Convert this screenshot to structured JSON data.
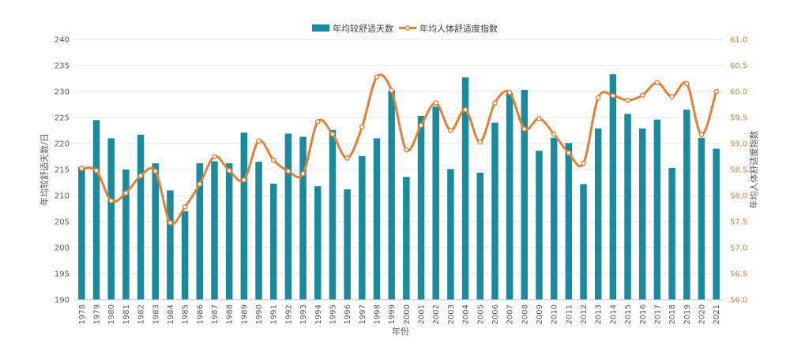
{
  "colors": {
    "bar": "#1a8a9c",
    "line": "#e0823a",
    "marker_fill": "#ffffff",
    "grid": "#e3e3e3",
    "axis_text": "#595959",
    "right_axis_text": "#d9823b"
  },
  "chart_data": {
    "type": "bar",
    "title": "",
    "xlabel": "年份",
    "ylabel": "年均较舒适天数/日",
    "y2label": "年均人体舒适度指数",
    "ylim": [
      190,
      240
    ],
    "y2lim": [
      56.0,
      61.0
    ],
    "yticks": [
      "190",
      "195",
      "200",
      "205",
      "210",
      "215",
      "220",
      "225",
      "230",
      "235",
      "240"
    ],
    "y2ticks": [
      "56.0",
      "56.5",
      "57.0",
      "57.5",
      "58.0",
      "58.5",
      "59.0",
      "59.5",
      "60.0",
      "60.5",
      "61.0"
    ],
    "grid": true,
    "legend_position": "top-center",
    "categories": [
      "1978",
      "1979",
      "1980",
      "1981",
      "1982",
      "1983",
      "1984",
      "1985",
      "1986",
      "1987",
      "1988",
      "1989",
      "1990",
      "1991",
      "1992",
      "1993",
      "1994",
      "1995",
      "1996",
      "1997",
      "1998",
      "1999",
      "2000",
      "2001",
      "2002",
      "2003",
      "2004",
      "2005",
      "2006",
      "2007",
      "2008",
      "2009",
      "2010",
      "2011",
      "2012",
      "2013",
      "2014",
      "2015",
      "2016",
      "2017",
      "2018",
      "2019",
      "2020",
      "2021"
    ],
    "series": [
      {
        "name": "年均较舒适天数",
        "type": "bar",
        "axis": "left",
        "values": [
          215.5,
          224.5,
          221,
          215,
          221.7,
          216.2,
          211,
          207,
          216.2,
          216.6,
          216.2,
          222.1,
          216.5,
          212.3,
          221.9,
          221.3,
          211.8,
          222.6,
          211.2,
          217.6,
          221,
          230.2,
          213.6,
          225.3,
          227.1,
          215.1,
          232.7,
          214.4,
          224,
          229.7,
          230.3,
          218.6,
          221.1,
          220.1,
          212.2,
          222.9,
          233.3,
          225.7,
          222.9,
          224.6,
          215.3,
          226.5,
          221.1,
          219
        ]
      },
      {
        "name": "年均人体舒适度指数",
        "type": "line",
        "axis": "right",
        "values": [
          58.52,
          58.48,
          57.9,
          58.05,
          58.38,
          58.47,
          57.48,
          57.78,
          58.22,
          58.75,
          58.48,
          58.3,
          59.05,
          58.68,
          58.47,
          58.42,
          59.42,
          59.18,
          58.72,
          59.32,
          60.28,
          60.02,
          58.88,
          59.35,
          59.78,
          59.25,
          59.65,
          59.03,
          59.78,
          59.98,
          59.28,
          59.48,
          59.18,
          58.82,
          58.62,
          59.88,
          59.92,
          59.83,
          59.93,
          60.17,
          59.9,
          60.15,
          59.17,
          60.0
        ]
      }
    ]
  }
}
